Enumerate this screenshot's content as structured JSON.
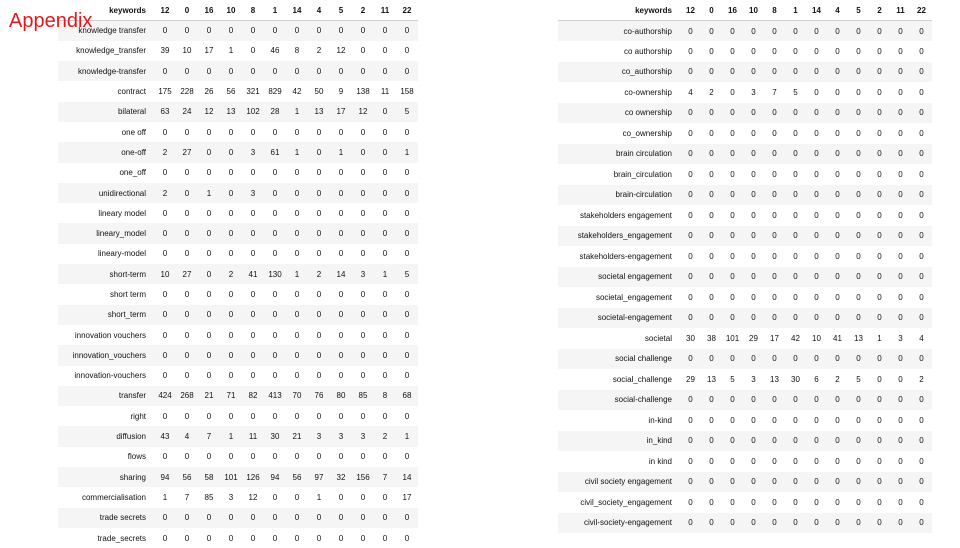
{
  "title": "Appendix",
  "tables": [
    {
      "headers": [
        "keywords",
        "12",
        "0",
        "16",
        "10",
        "8",
        "1",
        "14",
        "4",
        "5",
        "2",
        "11",
        "22"
      ],
      "rows": [
        {
          "keyword": "knowledge transfer",
          "values": [
            "0",
            "0",
            "0",
            "0",
            "0",
            "0",
            "0",
            "0",
            "0",
            "0",
            "0",
            "0"
          ]
        },
        {
          "keyword": "knowledge_transfer",
          "values": [
            "39",
            "10",
            "17",
            "1",
            "0",
            "46",
            "8",
            "2",
            "12",
            "0",
            "0",
            "0"
          ]
        },
        {
          "keyword": "knowledge-transfer",
          "values": [
            "0",
            "0",
            "0",
            "0",
            "0",
            "0",
            "0",
            "0",
            "0",
            "0",
            "0",
            "0"
          ]
        },
        {
          "keyword": "contract",
          "values": [
            "175",
            "228",
            "26",
            "56",
            "321",
            "829",
            "42",
            "50",
            "9",
            "138",
            "11",
            "158"
          ]
        },
        {
          "keyword": "bilateral",
          "values": [
            "63",
            "24",
            "12",
            "13",
            "102",
            "28",
            "1",
            "13",
            "17",
            "12",
            "0",
            "5"
          ]
        },
        {
          "keyword": "one off",
          "values": [
            "0",
            "0",
            "0",
            "0",
            "0",
            "0",
            "0",
            "0",
            "0",
            "0",
            "0",
            "0"
          ]
        },
        {
          "keyword": "one-off",
          "values": [
            "2",
            "27",
            "0",
            "0",
            "3",
            "61",
            "1",
            "0",
            "1",
            "0",
            "0",
            "1"
          ]
        },
        {
          "keyword": "one_off",
          "values": [
            "0",
            "0",
            "0",
            "0",
            "0",
            "0",
            "0",
            "0",
            "0",
            "0",
            "0",
            "0"
          ]
        },
        {
          "keyword": "unidirectional",
          "values": [
            "2",
            "0",
            "1",
            "0",
            "3",
            "0",
            "0",
            "0",
            "0",
            "0",
            "0",
            "0"
          ]
        },
        {
          "keyword": "lineary model",
          "values": [
            "0",
            "0",
            "0",
            "0",
            "0",
            "0",
            "0",
            "0",
            "0",
            "0",
            "0",
            "0"
          ]
        },
        {
          "keyword": "lineary_model",
          "values": [
            "0",
            "0",
            "0",
            "0",
            "0",
            "0",
            "0",
            "0",
            "0",
            "0",
            "0",
            "0"
          ]
        },
        {
          "keyword": "lineary-model",
          "values": [
            "0",
            "0",
            "0",
            "0",
            "0",
            "0",
            "0",
            "0",
            "0",
            "0",
            "0",
            "0"
          ]
        },
        {
          "keyword": "short-term",
          "values": [
            "10",
            "27",
            "0",
            "2",
            "41",
            "130",
            "1",
            "2",
            "14",
            "3",
            "1",
            "5"
          ]
        },
        {
          "keyword": "short term",
          "values": [
            "0",
            "0",
            "0",
            "0",
            "0",
            "0",
            "0",
            "0",
            "0",
            "0",
            "0",
            "0"
          ]
        },
        {
          "keyword": "short_term",
          "values": [
            "0",
            "0",
            "0",
            "0",
            "0",
            "0",
            "0",
            "0",
            "0",
            "0",
            "0",
            "0"
          ]
        },
        {
          "keyword": "innovation vouchers",
          "values": [
            "0",
            "0",
            "0",
            "0",
            "0",
            "0",
            "0",
            "0",
            "0",
            "0",
            "0",
            "0"
          ]
        },
        {
          "keyword": "innovation_vouchers",
          "values": [
            "0",
            "0",
            "0",
            "0",
            "0",
            "0",
            "0",
            "0",
            "0",
            "0",
            "0",
            "0"
          ]
        },
        {
          "keyword": "innovation-vouchers",
          "values": [
            "0",
            "0",
            "0",
            "0",
            "0",
            "0",
            "0",
            "0",
            "0",
            "0",
            "0",
            "0"
          ]
        },
        {
          "keyword": "transfer",
          "values": [
            "424",
            "268",
            "21",
            "71",
            "82",
            "413",
            "70",
            "76",
            "80",
            "85",
            "8",
            "68"
          ]
        },
        {
          "keyword": "right",
          "values": [
            "0",
            "0",
            "0",
            "0",
            "0",
            "0",
            "0",
            "0",
            "0",
            "0",
            "0",
            "0"
          ]
        },
        {
          "keyword": "diffusion",
          "values": [
            "43",
            "4",
            "7",
            "1",
            "11",
            "30",
            "21",
            "3",
            "3",
            "3",
            "2",
            "1"
          ]
        },
        {
          "keyword": "flows",
          "values": [
            "0",
            "0",
            "0",
            "0",
            "0",
            "0",
            "0",
            "0",
            "0",
            "0",
            "0",
            "0"
          ]
        },
        {
          "keyword": "sharing",
          "values": [
            "94",
            "56",
            "58",
            "101",
            "126",
            "94",
            "56",
            "97",
            "32",
            "156",
            "7",
            "14"
          ]
        },
        {
          "keyword": "commercialisation",
          "values": [
            "1",
            "7",
            "85",
            "3",
            "12",
            "0",
            "0",
            "1",
            "0",
            "0",
            "0",
            "17"
          ]
        },
        {
          "keyword": "trade secrets",
          "values": [
            "0",
            "0",
            "0",
            "0",
            "0",
            "0",
            "0",
            "0",
            "0",
            "0",
            "0",
            "0"
          ]
        },
        {
          "keyword": "trade_secrets",
          "values": [
            "0",
            "0",
            "0",
            "0",
            "0",
            "0",
            "0",
            "0",
            "0",
            "0",
            "0",
            "0"
          ]
        }
      ]
    },
    {
      "headers": [
        "keywords",
        "12",
        "0",
        "16",
        "10",
        "8",
        "1",
        "14",
        "4",
        "5",
        "2",
        "11",
        "22"
      ],
      "rows": [
        {
          "keyword": "co-authorship",
          "values": [
            "0",
            "0",
            "0",
            "0",
            "0",
            "0",
            "0",
            "0",
            "0",
            "0",
            "0",
            "0"
          ]
        },
        {
          "keyword": "co authorship",
          "values": [
            "0",
            "0",
            "0",
            "0",
            "0",
            "0",
            "0",
            "0",
            "0",
            "0",
            "0",
            "0"
          ]
        },
        {
          "keyword": "co_authorship",
          "values": [
            "0",
            "0",
            "0",
            "0",
            "0",
            "0",
            "0",
            "0",
            "0",
            "0",
            "0",
            "0"
          ]
        },
        {
          "keyword": "co-ownership",
          "values": [
            "4",
            "2",
            "0",
            "3",
            "7",
            "5",
            "0",
            "0",
            "0",
            "0",
            "0",
            "0"
          ]
        },
        {
          "keyword": "co ownership",
          "values": [
            "0",
            "0",
            "0",
            "0",
            "0",
            "0",
            "0",
            "0",
            "0",
            "0",
            "0",
            "0"
          ]
        },
        {
          "keyword": "co_ownership",
          "values": [
            "0",
            "0",
            "0",
            "0",
            "0",
            "0",
            "0",
            "0",
            "0",
            "0",
            "0",
            "0"
          ]
        },
        {
          "keyword": "brain circulation",
          "values": [
            "0",
            "0",
            "0",
            "0",
            "0",
            "0",
            "0",
            "0",
            "0",
            "0",
            "0",
            "0"
          ]
        },
        {
          "keyword": "brain_circulation",
          "values": [
            "0",
            "0",
            "0",
            "0",
            "0",
            "0",
            "0",
            "0",
            "0",
            "0",
            "0",
            "0"
          ]
        },
        {
          "keyword": "brain-circulation",
          "values": [
            "0",
            "0",
            "0",
            "0",
            "0",
            "0",
            "0",
            "0",
            "0",
            "0",
            "0",
            "0"
          ]
        },
        {
          "keyword": "stakeholders engagement",
          "values": [
            "0",
            "0",
            "0",
            "0",
            "0",
            "0",
            "0",
            "0",
            "0",
            "0",
            "0",
            "0"
          ]
        },
        {
          "keyword": "stakeholders_engagement",
          "values": [
            "0",
            "0",
            "0",
            "0",
            "0",
            "0",
            "0",
            "0",
            "0",
            "0",
            "0",
            "0"
          ]
        },
        {
          "keyword": "stakeholders-engagement",
          "values": [
            "0",
            "0",
            "0",
            "0",
            "0",
            "0",
            "0",
            "0",
            "0",
            "0",
            "0",
            "0"
          ]
        },
        {
          "keyword": "societal engagement",
          "values": [
            "0",
            "0",
            "0",
            "0",
            "0",
            "0",
            "0",
            "0",
            "0",
            "0",
            "0",
            "0"
          ]
        },
        {
          "keyword": "societal_engagement",
          "values": [
            "0",
            "0",
            "0",
            "0",
            "0",
            "0",
            "0",
            "0",
            "0",
            "0",
            "0",
            "0"
          ]
        },
        {
          "keyword": "societal-engagement",
          "values": [
            "0",
            "0",
            "0",
            "0",
            "0",
            "0",
            "0",
            "0",
            "0",
            "0",
            "0",
            "0"
          ]
        },
        {
          "keyword": "societal",
          "values": [
            "30",
            "38",
            "101",
            "29",
            "17",
            "42",
            "10",
            "41",
            "13",
            "1",
            "3",
            "4"
          ]
        },
        {
          "keyword": "social challenge",
          "values": [
            "0",
            "0",
            "0",
            "0",
            "0",
            "0",
            "0",
            "0",
            "0",
            "0",
            "0",
            "0"
          ]
        },
        {
          "keyword": "social_challenge",
          "values": [
            "29",
            "13",
            "5",
            "3",
            "13",
            "30",
            "6",
            "2",
            "5",
            "0",
            "0",
            "2"
          ]
        },
        {
          "keyword": "social-challenge",
          "values": [
            "0",
            "0",
            "0",
            "0",
            "0",
            "0",
            "0",
            "0",
            "0",
            "0",
            "0",
            "0"
          ]
        },
        {
          "keyword": "in-kind",
          "values": [
            "0",
            "0",
            "0",
            "0",
            "0",
            "0",
            "0",
            "0",
            "0",
            "0",
            "0",
            "0"
          ]
        },
        {
          "keyword": "in_kind",
          "values": [
            "0",
            "0",
            "0",
            "0",
            "0",
            "0",
            "0",
            "0",
            "0",
            "0",
            "0",
            "0"
          ]
        },
        {
          "keyword": "in kind",
          "values": [
            "0",
            "0",
            "0",
            "0",
            "0",
            "0",
            "0",
            "0",
            "0",
            "0",
            "0",
            "0"
          ]
        },
        {
          "keyword": "civil society engagement",
          "values": [
            "0",
            "0",
            "0",
            "0",
            "0",
            "0",
            "0",
            "0",
            "0",
            "0",
            "0",
            "0"
          ]
        },
        {
          "keyword": "civil_society_engagement",
          "values": [
            "0",
            "0",
            "0",
            "0",
            "0",
            "0",
            "0",
            "0",
            "0",
            "0",
            "0",
            "0"
          ]
        },
        {
          "keyword": "civil-society-engagement",
          "values": [
            "0",
            "0",
            "0",
            "0",
            "0",
            "0",
            "0",
            "0",
            "0",
            "0",
            "0",
            "0"
          ]
        }
      ]
    }
  ]
}
